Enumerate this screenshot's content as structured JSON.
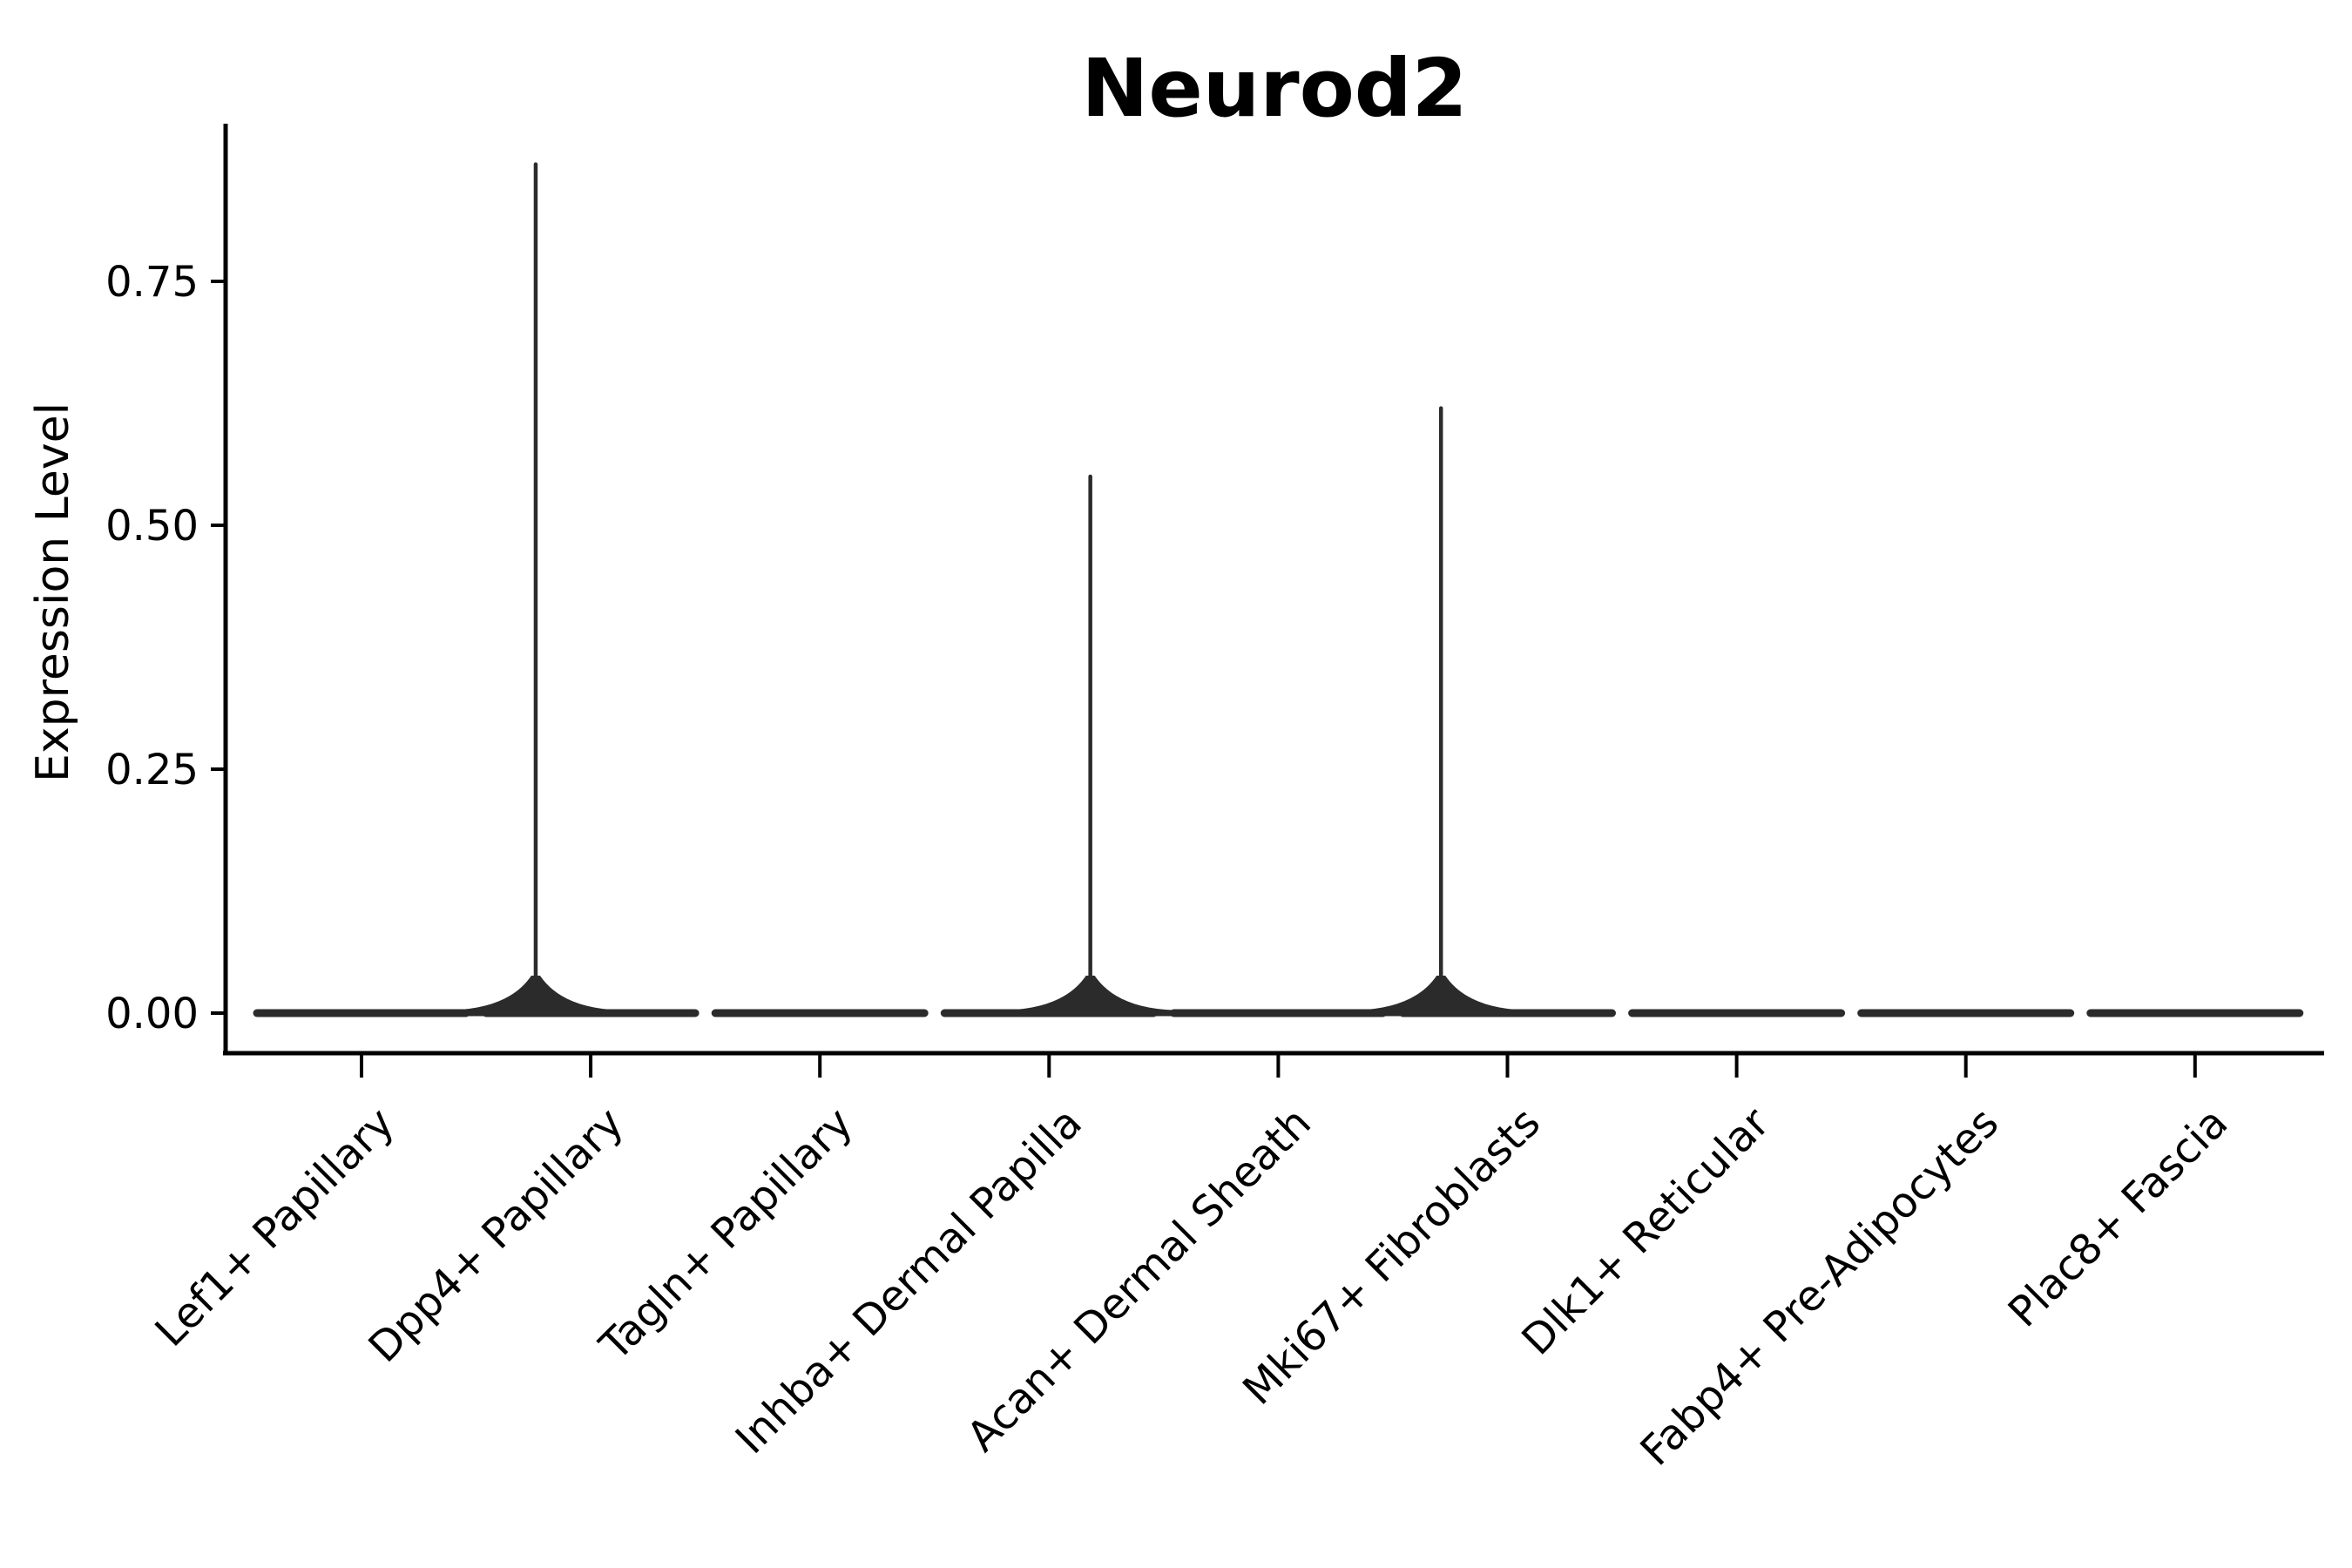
{
  "title": "Neurod2",
  "axes": {
    "y_label": "Expression Level"
  },
  "chart_data": {
    "type": "violin",
    "title": "Neurod2",
    "xlabel": "",
    "ylabel": "Expression Level",
    "ylim": [
      0,
      0.92
    ],
    "grid": false,
    "legend": "none",
    "yticks": [
      {
        "value": 0.0,
        "label": "0.00"
      },
      {
        "value": 0.25,
        "label": "0.25"
      },
      {
        "value": 0.5,
        "label": "0.50"
      },
      {
        "value": 0.75,
        "label": "0.75"
      }
    ],
    "categories": [
      "Lef1+ Papillary",
      "Dpp4+ Papillary",
      "Tagln+ Papillary",
      "Inhba+ Dermal Papilla",
      "Acan+ Dermal Sheath",
      "Mki67+ Fibroblasts",
      "Dlk1+ Reticular",
      "Fabp4+ Pre-Adipocytes",
      "Plac8+ Fascia"
    ],
    "violins": [
      {
        "label": "Lef1+ Papillary",
        "baseline_value": 0,
        "max_value": 0,
        "has_spike": false,
        "spike_x_frac": 0
      },
      {
        "label": "Dpp4+ Papillary",
        "baseline_value": 0,
        "max_value": 0.87,
        "has_spike": true,
        "spike_x_frac": -0.24
      },
      {
        "label": "Tagln+ Papillary",
        "baseline_value": 0,
        "max_value": 0,
        "has_spike": false,
        "spike_x_frac": 0
      },
      {
        "label": "Inhba+ Dermal Papilla",
        "baseline_value": 0,
        "max_value": 0.55,
        "has_spike": true,
        "spike_x_frac": 0.18
      },
      {
        "label": "Acan+ Dermal Sheath",
        "baseline_value": 0,
        "max_value": 0,
        "has_spike": false,
        "spike_x_frac": 0
      },
      {
        "label": "Mki67+ Fibroblasts",
        "baseline_value": 0,
        "max_value": 0.62,
        "has_spike": true,
        "spike_x_frac": -0.29
      },
      {
        "label": "Dlk1+ Reticular",
        "baseline_value": 0,
        "max_value": 0,
        "has_spike": false,
        "spike_x_frac": 0
      },
      {
        "label": "Fabp4+ Pre-Adipocytes",
        "baseline_value": 0,
        "max_value": 0,
        "has_spike": false,
        "spike_x_frac": 0
      },
      {
        "label": "Plac8+ Fascia",
        "baseline_value": 0,
        "max_value": 0,
        "has_spike": false,
        "spike_x_frac": 0
      }
    ],
    "colors": {
      "violin": "#2b2b2b",
      "axis": "#000000",
      "text": "#000000",
      "background": "#ffffff"
    }
  }
}
